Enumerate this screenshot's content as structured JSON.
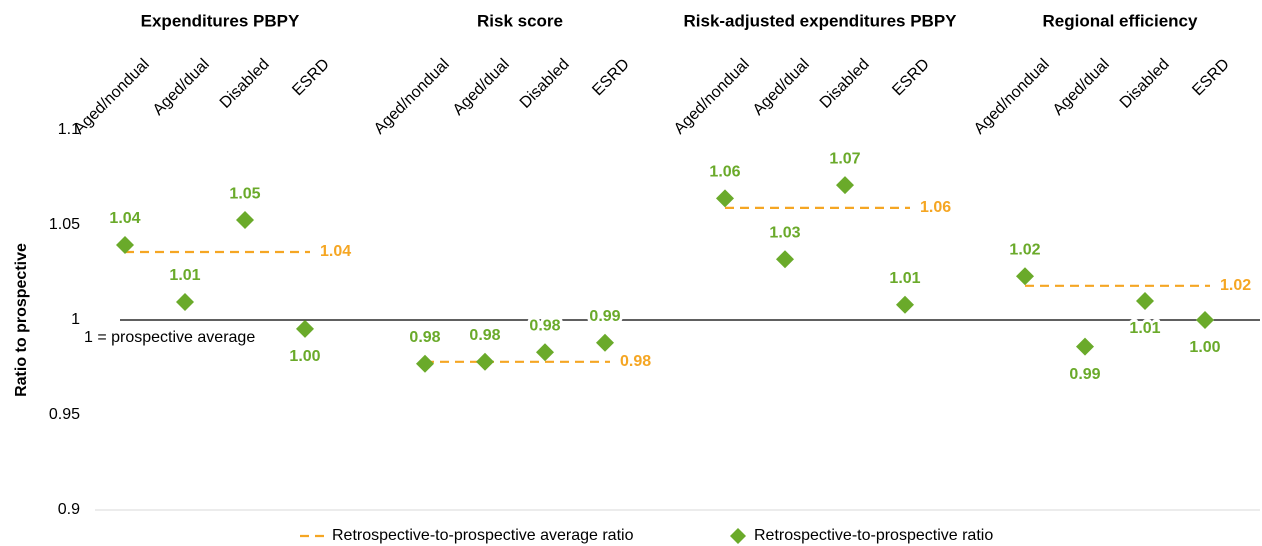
{
  "chart_data": {
    "type": "dot",
    "ylabel": "Ratio to prospective",
    "ylim": [
      0.9,
      1.1
    ],
    "yticks": [
      0.9,
      0.95,
      1,
      1.05,
      1.1
    ],
    "reference_line": 1,
    "annotation": "1  = prospective average",
    "marker_color": "#6aaa2a",
    "average_color": "#f5a623",
    "legend": [
      "Retrospective-to-prospective average ratio",
      "Retrospective-to-prospective ratio"
    ],
    "panels": [
      {
        "title": "Expenditures PBPY",
        "categories": [
          "Aged/nondual",
          "Aged/dual",
          "Disabled",
          "ESRD"
        ],
        "values": [
          1.0395,
          1.0095,
          1.0526,
          0.9953
        ],
        "value_labels": [
          "1.04",
          "1.01",
          "1.05",
          "1.00"
        ],
        "average": 1.0358,
        "average_label": "1.04"
      },
      {
        "title": "Risk score",
        "categories": [
          "Aged/nondual",
          "Aged/dual",
          "Disabled",
          "ESRD"
        ],
        "values": [
          0.977,
          0.978,
          0.983,
          0.988
        ],
        "value_labels": [
          "0.98",
          "0.98",
          "0.98",
          "0.99"
        ],
        "average": 0.978,
        "average_label": "0.98"
      },
      {
        "title": "Risk-adjusted expenditures PBPY",
        "categories": [
          "Aged/nondual",
          "Aged/dual",
          "Disabled",
          "ESRD"
        ],
        "values": [
          1.064,
          1.032,
          1.071,
          1.008
        ],
        "value_labels": [
          "1.06",
          "1.03",
          "1.07",
          "1.01"
        ],
        "average": 1.059,
        "average_label": "1.06"
      },
      {
        "title": "Regional efficiency",
        "categories": [
          "Aged/nondual",
          "Aged/dual",
          "Disabled",
          "ESRD"
        ],
        "values": [
          1.023,
          0.986,
          1.01,
          1.0
        ],
        "value_labels": [
          "1.02",
          "0.99",
          "1.01",
          "1.00"
        ],
        "average": 1.018,
        "average_label": "1.02"
      }
    ]
  }
}
